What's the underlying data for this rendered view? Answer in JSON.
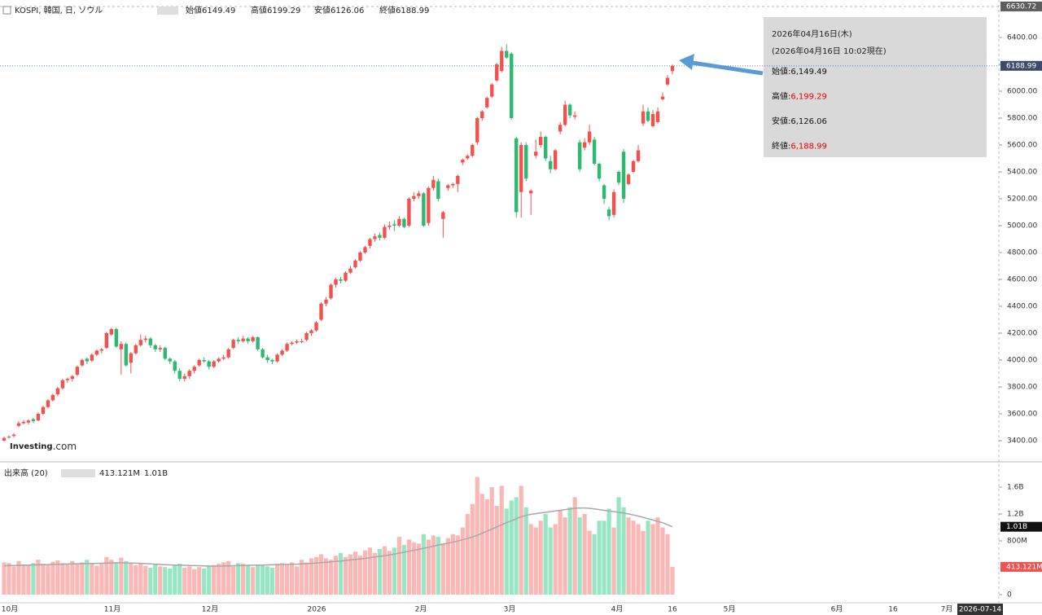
{
  "chart_data": {
    "type": "candlestick",
    "title": "KOSPI, 韓国, 日, ソウル",
    "ohlc_header": [
      {
        "name": "始値",
        "value": "6149.49"
      },
      {
        "name": "高値",
        "value": "6199.29"
      },
      {
        "name": "安値",
        "value": "6126.06"
      },
      {
        "name": "終値",
        "value": "6188.99"
      }
    ],
    "colors": {
      "up": "#ef5350",
      "down": "#2eb872",
      "up_volume": "#f9b8b6",
      "down_volume": "#97e6c3",
      "ma": "#a8a8a8",
      "last_line": "#5c7fd9",
      "arrow": "#5b9bd5"
    },
    "candles": [
      [
        3400,
        3430,
        3395,
        3420
      ],
      [
        3425,
        3440,
        3415,
        3430
      ],
      [
        3435,
        3455,
        3425,
        3445
      ],
      [
        3510,
        3545,
        3500,
        3530
      ],
      [
        3530,
        3555,
        3520,
        3540
      ],
      [
        3535,
        3560,
        3520,
        3550
      ],
      [
        3560,
        3570,
        3530,
        3545
      ],
      [
        3550,
        3610,
        3545,
        3600
      ],
      [
        3600,
        3660,
        3590,
        3650
      ],
      [
        3650,
        3710,
        3640,
        3700
      ],
      [
        3700,
        3750,
        3690,
        3740
      ],
      [
        3745,
        3800,
        3730,
        3790
      ],
      [
        3790,
        3860,
        3780,
        3850
      ],
      [
        3850,
        3870,
        3830,
        3860
      ],
      [
        3860,
        3890,
        3840,
        3880
      ],
      [
        3890,
        3960,
        3880,
        3950
      ],
      [
        3960,
        4010,
        3950,
        4000
      ],
      [
        4010,
        4020,
        3970,
        3990
      ],
      [
        3995,
        4050,
        3985,
        4040
      ],
      [
        4040,
        4080,
        4030,
        4070
      ],
      [
        4070,
        4090,
        4050,
        4080
      ],
      [
        4090,
        4210,
        4085,
        4200
      ],
      [
        4190,
        4240,
        4180,
        4230
      ],
      [
        4230,
        4240,
        4090,
        4100
      ],
      [
        4080,
        4140,
        3890,
        4120
      ],
      [
        4120,
        4130,
        3950,
        3960
      ],
      [
        3980,
        4060,
        3900,
        4050
      ],
      [
        4050,
        4120,
        4040,
        4110
      ],
      [
        4110,
        4190,
        4100,
        4150
      ],
      [
        4150,
        4180,
        4130,
        4160
      ],
      [
        4160,
        4170,
        4090,
        4110
      ],
      [
        4110,
        4120,
        4060,
        4080
      ],
      [
        4080,
        4110,
        4060,
        4090
      ],
      [
        4090,
        4100,
        4000,
        4010
      ],
      [
        4010,
        4020,
        3970,
        3990
      ],
      [
        3990,
        4000,
        3900,
        3920
      ],
      [
        3920,
        3940,
        3840,
        3860
      ],
      [
        3860,
        3900,
        3840,
        3880
      ],
      [
        3880,
        3930,
        3860,
        3920
      ],
      [
        3920,
        3960,
        3900,
        3950
      ],
      [
        3960,
        4010,
        3950,
        4000
      ],
      [
        4000,
        4020,
        3980,
        3990
      ],
      [
        3990,
        4000,
        3930,
        3950
      ],
      [
        3950,
        4000,
        3940,
        3990
      ],
      [
        3990,
        4020,
        3980,
        4010
      ],
      [
        4010,
        4040,
        4000,
        4020
      ],
      [
        4020,
        4090,
        4010,
        4080
      ],
      [
        4090,
        4160,
        4080,
        4150
      ],
      [
        4150,
        4170,
        4120,
        4140
      ],
      [
        4140,
        4180,
        4130,
        4160
      ],
      [
        4160,
        4170,
        4120,
        4140
      ],
      [
        4140,
        4180,
        4130,
        4170
      ],
      [
        4170,
        4175,
        4070,
        4080
      ],
      [
        4080,
        4090,
        4010,
        4020
      ],
      [
        4020,
        4040,
        3980,
        4000
      ],
      [
        4000,
        4010,
        3970,
        3990
      ],
      [
        3990,
        4050,
        3980,
        4040
      ],
      [
        4040,
        4080,
        4030,
        4070
      ],
      [
        4070,
        4130,
        4060,
        4120
      ],
      [
        4120,
        4140,
        4110,
        4130
      ],
      [
        4130,
        4150,
        4120,
        4140
      ],
      [
        4135,
        4160,
        4125,
        4140
      ],
      [
        4150,
        4210,
        4140,
        4200
      ],
      [
        4200,
        4230,
        4180,
        4220
      ],
      [
        4220,
        4290,
        4210,
        4280
      ],
      [
        4300,
        4430,
        4290,
        4420
      ],
      [
        4420,
        4470,
        4400,
        4450
      ],
      [
        4460,
        4570,
        4450,
        4560
      ],
      [
        4560,
        4610,
        4540,
        4600
      ],
      [
        4600,
        4620,
        4570,
        4590
      ],
      [
        4590,
        4660,
        4580,
        4650
      ],
      [
        4650,
        4700,
        4640,
        4680
      ],
      [
        4690,
        4750,
        4680,
        4740
      ],
      [
        4740,
        4810,
        4730,
        4800
      ],
      [
        4800,
        4850,
        4790,
        4840
      ],
      [
        4850,
        4910,
        4830,
        4900
      ],
      [
        4900,
        4940,
        4880,
        4920
      ],
      [
        4930,
        4950,
        4890,
        4910
      ],
      [
        4910,
        5010,
        4900,
        4990
      ],
      [
        4990,
        5030,
        4970,
        5000
      ],
      [
        5010,
        5040,
        4960,
        5000
      ],
      [
        5000,
        5070,
        4990,
        5050
      ],
      [
        5050,
        5060,
        4980,
        4990
      ],
      [
        5000,
        5210,
        4990,
        5200
      ],
      [
        5200,
        5250,
        5180,
        5220
      ],
      [
        5220,
        5260,
        5200,
        5240
      ],
      [
        5240,
        5250,
        4990,
        5000
      ],
      [
        5020,
        5290,
        5000,
        5280
      ],
      [
        5280,
        5370,
        5260,
        5340
      ],
      [
        5330,
        5350,
        5180,
        5200
      ],
      [
        5050,
        5110,
        4910,
        5100
      ],
      [
        5280,
        5310,
        5260,
        5300
      ],
      [
        5300,
        5320,
        5280,
        5310
      ],
      [
        5310,
        5380,
        5250,
        5370
      ],
      [
        5470,
        5500,
        5450,
        5490
      ],
      [
        5500,
        5530,
        5490,
        5520
      ],
      [
        5520,
        5610,
        5510,
        5600
      ],
      [
        5620,
        5810,
        5600,
        5800
      ],
      [
        5800,
        5860,
        5780,
        5850
      ],
      [
        5880,
        5960,
        5870,
        5950
      ],
      [
        5960,
        6060,
        5950,
        6050
      ],
      [
        6080,
        6210,
        6070,
        6200
      ],
      [
        6150,
        6330,
        6140,
        6300
      ],
      [
        6300,
        6350,
        6240,
        6250
      ],
      [
        6280,
        6290,
        5790,
        5800
      ],
      [
        5650,
        5660,
        5060,
        5100
      ],
      [
        5250,
        5620,
        5060,
        5600
      ],
      [
        5600,
        5620,
        5330,
        5350
      ],
      [
        5240,
        5270,
        5080,
        5260
      ],
      [
        5520,
        5640,
        5500,
        5550
      ],
      [
        5600,
        5700,
        5580,
        5660
      ],
      [
        5660,
        5670,
        5480,
        5500
      ],
      [
        5480,
        5520,
        5390,
        5420
      ],
      [
        5420,
        5570,
        5410,
        5560
      ],
      [
        5700,
        5770,
        5680,
        5750
      ],
      [
        5750,
        5930,
        5740,
        5900
      ],
      [
        5900,
        5910,
        5800,
        5820
      ],
      [
        5810,
        5850,
        5790,
        5820
      ],
      [
        5620,
        5640,
        5400,
        5420
      ],
      [
        5580,
        5650,
        5560,
        5620
      ],
      [
        5620,
        5750,
        5600,
        5700
      ],
      [
        5640,
        5660,
        5450,
        5460
      ],
      [
        5460,
        5470,
        5330,
        5350
      ],
      [
        5300,
        5310,
        5160,
        5200
      ],
      [
        5120,
        5140,
        5040,
        5070
      ],
      [
        5080,
        5270,
        5060,
        5250
      ],
      [
        5400,
        5410,
        5300,
        5320
      ],
      [
        5550,
        5570,
        5170,
        5200
      ],
      [
        5310,
        5390,
        5300,
        5380
      ],
      [
        5400,
        5490,
        5390,
        5480
      ],
      [
        5480,
        5600,
        5470,
        5560
      ],
      [
        5760,
        5900,
        5740,
        5850
      ],
      [
        5850,
        5880,
        5770,
        5780
      ],
      [
        5740,
        5860,
        5730,
        5830
      ],
      [
        5770,
        5880,
        5760,
        5850
      ],
      [
        5940,
        5990,
        5930,
        5960
      ],
      [
        6050,
        6120,
        6040,
        6100
      ],
      [
        6149.49,
        6199.29,
        6126.06,
        6188.99
      ]
    ],
    "ylim": [
      3254.5,
      6678.8
    ],
    "yticks": [
      {
        "value": 3400,
        "label": "3400.00"
      },
      {
        "value": 3600,
        "label": "3600.00"
      },
      {
        "value": 3800,
        "label": "3800.00"
      },
      {
        "value": 4000,
        "label": "4000.00"
      },
      {
        "value": 4200,
        "label": "4200.00"
      },
      {
        "value": 4400,
        "label": "4400.00"
      },
      {
        "value": 4600,
        "label": "4600.00"
      },
      {
        "value": 4800,
        "label": "4800.00"
      },
      {
        "value": 5000,
        "label": "5000.00"
      },
      {
        "value": 5200,
        "label": "5200.00"
      },
      {
        "value": 5400,
        "label": "5400.00"
      },
      {
        "value": 5600,
        "label": "5600.00"
      },
      {
        "value": 5800,
        "label": "5800.00"
      },
      {
        "value": 6000,
        "label": "6000.00"
      },
      {
        "value": 6200,
        "label": "6200.00"
      },
      {
        "value": 6400,
        "label": "6400.00"
      }
    ],
    "top_label": {
      "value": 6630.72,
      "label": "6630.72"
    },
    "last_label": {
      "value": 6188.99,
      "label": "6188.99"
    },
    "grid": false,
    "volume": {
      "title": "出来高 (20)",
      "values": [
        480,
        470,
        420,
        500,
        450,
        430,
        470,
        520,
        460,
        440,
        490,
        510,
        470,
        460,
        500,
        450,
        480,
        520,
        460,
        430,
        470,
        560,
        520,
        480,
        550,
        500,
        460,
        440,
        470,
        430,
        400,
        450,
        420,
        410,
        390,
        440,
        460,
        400,
        420,
        380,
        410,
        390,
        420,
        440,
        460,
        480,
        500,
        420,
        470,
        460,
        440,
        410,
        430,
        450,
        420,
        400,
        460,
        470,
        440,
        480,
        420,
        520,
        480,
        540,
        560,
        600,
        540,
        520,
        580,
        620,
        560,
        600,
        640,
        580,
        660,
        700,
        620,
        680,
        720,
        650,
        700,
        860,
        740,
        820,
        780,
        760,
        900,
        820,
        880,
        860,
        760,
        840,
        900,
        880,
        1000,
        1200,
        1350,
        1750,
        1500,
        1420,
        1600,
        1320,
        1620,
        1280,
        1400,
        1450,
        1620,
        1300,
        1050,
        1000,
        1100,
        1200,
        1000,
        1050,
        1250,
        1150,
        1300,
        1450,
        1150,
        1200,
        950,
        900,
        1100,
        1100,
        1280,
        1000,
        1450,
        1300,
        1150,
        1100,
        1050,
        950,
        1100,
        1050,
        1150,
        1000,
        900,
        413.121
      ],
      "ma": [
        430,
        432,
        434,
        436,
        438,
        440,
        442,
        444,
        446,
        448,
        450,
        452,
        454,
        456,
        458,
        460,
        462,
        462,
        464,
        466,
        468,
        470,
        472,
        474,
        474,
        472,
        470,
        468,
        466,
        462,
        458,
        454,
        450,
        446,
        442,
        440,
        438,
        436,
        434,
        432,
        430,
        428,
        426,
        424,
        424,
        426,
        428,
        430,
        432,
        434,
        436,
        438,
        440,
        440,
        442,
        444,
        446,
        448,
        450,
        452,
        454,
        458,
        462,
        466,
        470,
        476,
        482,
        488,
        494,
        500,
        508,
        516,
        524,
        532,
        540,
        550,
        560,
        570,
        580,
        592,
        604,
        618,
        632,
        646,
        660,
        674,
        690,
        706,
        722,
        738,
        752,
        766,
        782,
        798,
        816,
        836,
        858,
        884,
        914,
        944,
        976,
        1008,
        1040,
        1070,
        1100,
        1130,
        1160,
        1180,
        1195,
        1205,
        1215,
        1225,
        1235,
        1245,
        1255,
        1265,
        1275,
        1285,
        1290,
        1290,
        1285,
        1275,
        1265,
        1255,
        1245,
        1235,
        1225,
        1215,
        1200,
        1185,
        1170,
        1150,
        1130,
        1110,
        1090,
        1070,
        1040,
        1010
      ],
      "ylim": [
        -121,
        1903
      ],
      "yticks": [
        0,
        {
          "value": 800,
          "label": "800M"
        },
        {
          "value": 1200,
          "label": "1.2B"
        },
        {
          "value": 1600,
          "label": "1.6B"
        }
      ],
      "last_label": {
        "value": 413.121,
        "label": "413.121M"
      },
      "ma_label": {
        "value": 1010,
        "label": "1.01B"
      }
    },
    "x_labels": [
      "10月",
      "11月",
      "12月",
      "2026",
      "2月",
      "3月",
      "4月",
      "16",
      "5月",
      "6月",
      "16",
      "7月",
      "2026-07-14"
    ],
    "logo": {
      "brand": "Investing",
      "suffix": ".com"
    },
    "annotation": {
      "date": "2026年04月16日(木)",
      "time": "(2026年04月16日 10:02現在)",
      "rows": [
        {
          "label": "始値:",
          "value": "6,149.49",
          "color": "#111111"
        },
        {
          "label": "高値:",
          "value": "6,199.29",
          "color": "#e00000"
        },
        {
          "label": "安値:",
          "value": "6,126.06",
          "color": "#111111"
        },
        {
          "label": "終値:",
          "value": "6,188.99",
          "color": "#e00000"
        }
      ]
    }
  }
}
